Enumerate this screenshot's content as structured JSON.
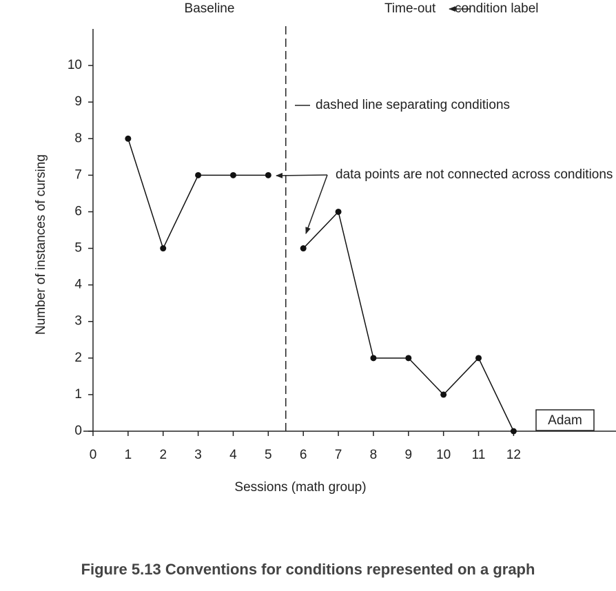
{
  "chart_data": {
    "type": "line",
    "x_label": "Sessions (math group)",
    "y_label": "Number of instances of cursing",
    "caption": "Figure 5.13 Conventions for conditions represented on a graph",
    "series": [
      {
        "name": "Baseline",
        "color": "#111111",
        "x": [
          1,
          2,
          3,
          4,
          5
        ],
        "values": [
          8,
          5,
          7,
          7,
          7
        ]
      },
      {
        "name": "Time-out",
        "color": "#111111",
        "x": [
          6,
          7,
          8,
          9,
          10,
          11,
          12
        ],
        "values": [
          5,
          6,
          2,
          2,
          1,
          2,
          0
        ]
      }
    ],
    "phase_change_x": 5.5,
    "participant": "Adam",
    "annotations": {
      "condition_label": "condition label",
      "dashed_line": "dashed line separating conditions",
      "not_connected": "data points are not connected across conditions"
    },
    "xlim": [
      0,
      15
    ],
    "xticks": [
      0,
      1,
      2,
      3,
      4,
      5,
      6,
      7,
      8,
      9,
      10,
      11,
      12
    ],
    "ylim": [
      0,
      11
    ],
    "yticks": [
      0,
      1,
      2,
      3,
      4,
      5,
      6,
      7,
      8,
      9,
      10
    ],
    "grid": false
  }
}
